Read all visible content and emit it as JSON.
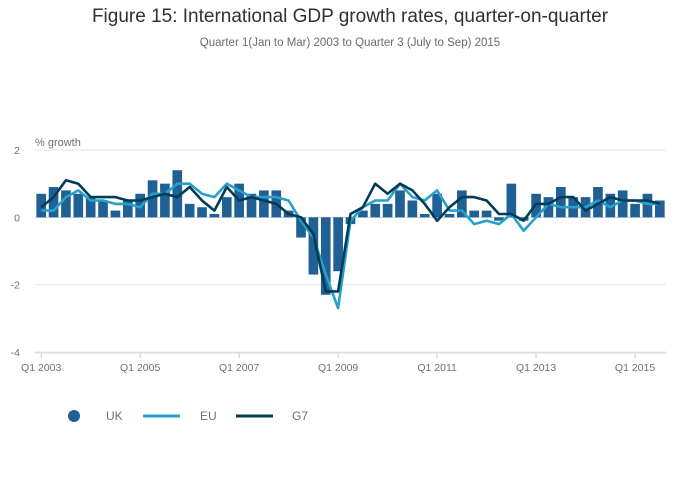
{
  "chart_data": {
    "type": "bar+line",
    "title": "Figure 15: International GDP growth rates, quarter-on-quarter",
    "subtitle": "Quarter 1(Jan to Mar) 2003 to Quarter 3 (July to Sep) 2015",
    "ylabel": "% growth",
    "ylim": [
      -4,
      2
    ],
    "yticks": [
      2,
      0,
      -2,
      -4
    ],
    "ytick_labels": [
      "2",
      "0",
      "-2",
      "-4"
    ],
    "categories": [
      "Q1 2003",
      "Q2 2003",
      "Q3 2003",
      "Q4 2003",
      "Q1 2004",
      "Q2 2004",
      "Q3 2004",
      "Q4 2004",
      "Q1 2005",
      "Q2 2005",
      "Q3 2005",
      "Q4 2005",
      "Q1 2006",
      "Q2 2006",
      "Q3 2006",
      "Q4 2006",
      "Q1 2007",
      "Q2 2007",
      "Q3 2007",
      "Q4 2007",
      "Q1 2008",
      "Q2 2008",
      "Q3 2008",
      "Q4 2008",
      "Q1 2009",
      "Q2 2009",
      "Q3 2009",
      "Q4 2009",
      "Q1 2010",
      "Q2 2010",
      "Q3 2010",
      "Q4 2010",
      "Q1 2011",
      "Q2 2011",
      "Q3 2011",
      "Q4 2011",
      "Q1 2012",
      "Q2 2012",
      "Q3 2012",
      "Q4 2012",
      "Q1 2013",
      "Q2 2013",
      "Q3 2013",
      "Q4 2013",
      "Q1 2014",
      "Q2 2014",
      "Q3 2014",
      "Q4 2014",
      "Q1 2015",
      "Q2 2015",
      "Q3 2015"
    ],
    "xtick_labels": [
      "Q1 2003",
      "Q1 2005",
      "Q1 2007",
      "Q1 2009",
      "Q1 2011",
      "Q1 2013",
      "Q1 2015"
    ],
    "xtick_indices": [
      0,
      8,
      16,
      24,
      32,
      40,
      48
    ],
    "series": [
      {
        "name": "UK",
        "type": "bar",
        "color": "#206095",
        "values": [
          0.7,
          0.9,
          0.8,
          0.7,
          0.6,
          0.5,
          0.2,
          0.5,
          0.7,
          1.1,
          1.0,
          1.4,
          0.4,
          0.3,
          0.1,
          0.6,
          1.0,
          0.7,
          0.8,
          0.8,
          0.2,
          -0.6,
          -1.7,
          -2.3,
          -1.6,
          -0.2,
          0.2,
          0.4,
          0.4,
          0.8,
          0.5,
          0.1,
          0.7,
          0.1,
          0.8,
          0.2,
          0.2,
          -0.1,
          1.0,
          -0.1,
          0.7,
          0.6,
          0.9,
          0.6,
          0.6,
          0.9,
          0.7,
          0.8,
          0.4,
          0.7,
          0.5
        ]
      },
      {
        "name": "EU",
        "type": "line",
        "color": "#27a0cc",
        "values": [
          0.2,
          0.2,
          0.6,
          0.8,
          0.5,
          0.5,
          0.4,
          0.4,
          0.3,
          0.7,
          0.7,
          1.0,
          1.0,
          0.7,
          0.6,
          1.0,
          0.8,
          0.6,
          0.6,
          0.6,
          0.5,
          -0.1,
          -0.6,
          -1.7,
          -2.7,
          -0.1,
          0.3,
          0.5,
          0.5,
          1.0,
          0.6,
          0.5,
          0.8,
          0.2,
          0.2,
          -0.2,
          -0.1,
          -0.2,
          0.1,
          -0.4,
          0.0,
          0.4,
          0.3,
          0.3,
          0.3,
          0.5,
          0.3,
          0.5,
          0.5,
          0.4,
          0.4
        ]
      },
      {
        "name": "G7",
        "type": "line",
        "color": "#003c57",
        "values": [
          0.3,
          0.6,
          1.1,
          1.0,
          0.6,
          0.6,
          0.6,
          0.5,
          0.5,
          0.6,
          0.7,
          0.6,
          0.9,
          0.5,
          0.2,
          0.9,
          0.5,
          0.6,
          0.5,
          0.4,
          0.1,
          0.0,
          -0.5,
          -2.2,
          -2.2,
          0.1,
          0.3,
          1.0,
          0.7,
          1.0,
          0.8,
          0.4,
          -0.1,
          0.3,
          0.6,
          0.6,
          0.5,
          0.1,
          0.1,
          -0.1,
          0.4,
          0.4,
          0.6,
          0.6,
          0.2,
          0.4,
          0.6,
          0.5,
          0.5,
          0.5,
          0.4
        ]
      }
    ],
    "legend": [
      "UK",
      "EU",
      "G7"
    ],
    "legend_position": "bottom-left",
    "grid": true
  }
}
